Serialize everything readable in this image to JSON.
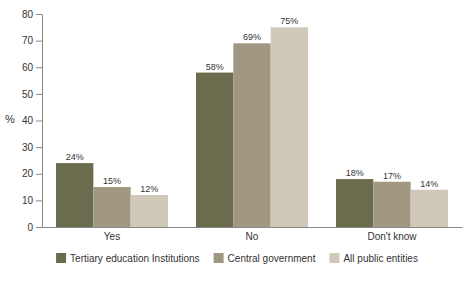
{
  "chart_data": {
    "type": "bar",
    "categories": [
      "Yes",
      "No",
      "Don't know"
    ],
    "series": [
      {
        "name": "Tertiary education Institutions",
        "color": "#6b6b4e",
        "values": [
          24,
          58,
          18
        ],
        "value_labels": [
          "24%",
          "58%",
          "18%"
        ]
      },
      {
        "name": "Central government",
        "color": "#a09880",
        "values": [
          15,
          69,
          17
        ],
        "value_labels": [
          "15%",
          "69%",
          "17%"
        ]
      },
      {
        "name": "All public entities",
        "color": "#d0c8b8",
        "values": [
          12,
          75,
          14
        ],
        "value_labels": [
          "12%",
          "75%",
          "14%"
        ]
      }
    ],
    "ylabel": "%",
    "ylim": [
      0,
      80
    ],
    "yticks": [
      0,
      10,
      20,
      30,
      40,
      50,
      60,
      70,
      80
    ],
    "grid": false,
    "data_labels": true,
    "legend": "bottom"
  }
}
